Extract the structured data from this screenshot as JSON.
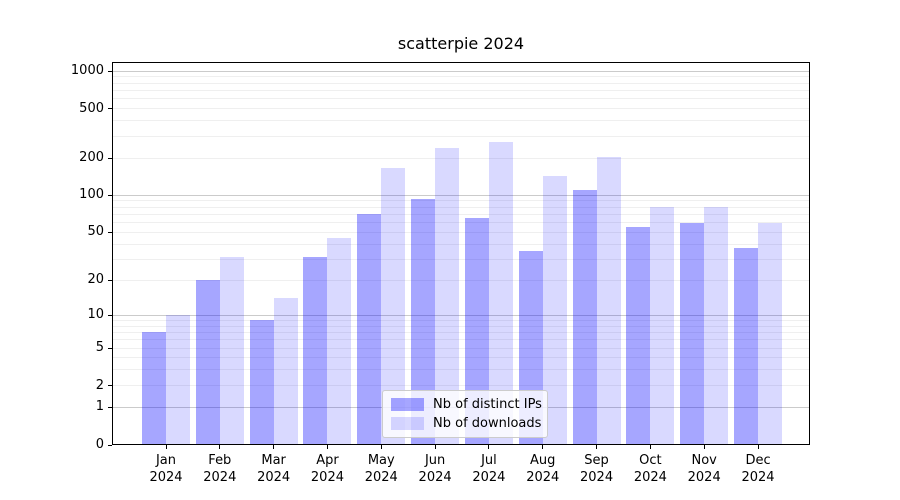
{
  "chart_data": {
    "type": "bar",
    "title": "scatterpie 2024",
    "x_year": "2024",
    "categories": [
      "Jan",
      "Feb",
      "Mar",
      "Apr",
      "May",
      "Jun",
      "Jul",
      "Aug",
      "Sep",
      "Oct",
      "Nov",
      "Dec"
    ],
    "series": [
      {
        "name": "Nb of distinct IPs",
        "color": "rgba(0,0,255,0.35)",
        "values": [
          7,
          20,
          9,
          31,
          71,
          94,
          65,
          35,
          110,
          55,
          60,
          37
        ]
      },
      {
        "name": "Nb of downloads",
        "color": "rgba(0,0,255,0.15)",
        "values": [
          10,
          31,
          14,
          45,
          165,
          240,
          270,
          142,
          203,
          80,
          80,
          60
        ]
      }
    ],
    "y_axis": {
      "scale": "log10(1+x)",
      "tick_labels": [
        0,
        1,
        2,
        5,
        10,
        20,
        50,
        100,
        200,
        500,
        1000
      ],
      "major_grid_values": [
        1,
        10,
        100,
        1000
      ],
      "minor_grid_decades": [
        1,
        10,
        100
      ]
    },
    "grid": true,
    "legend_position": "lower-center",
    "xlabel": "",
    "ylabel": ""
  }
}
